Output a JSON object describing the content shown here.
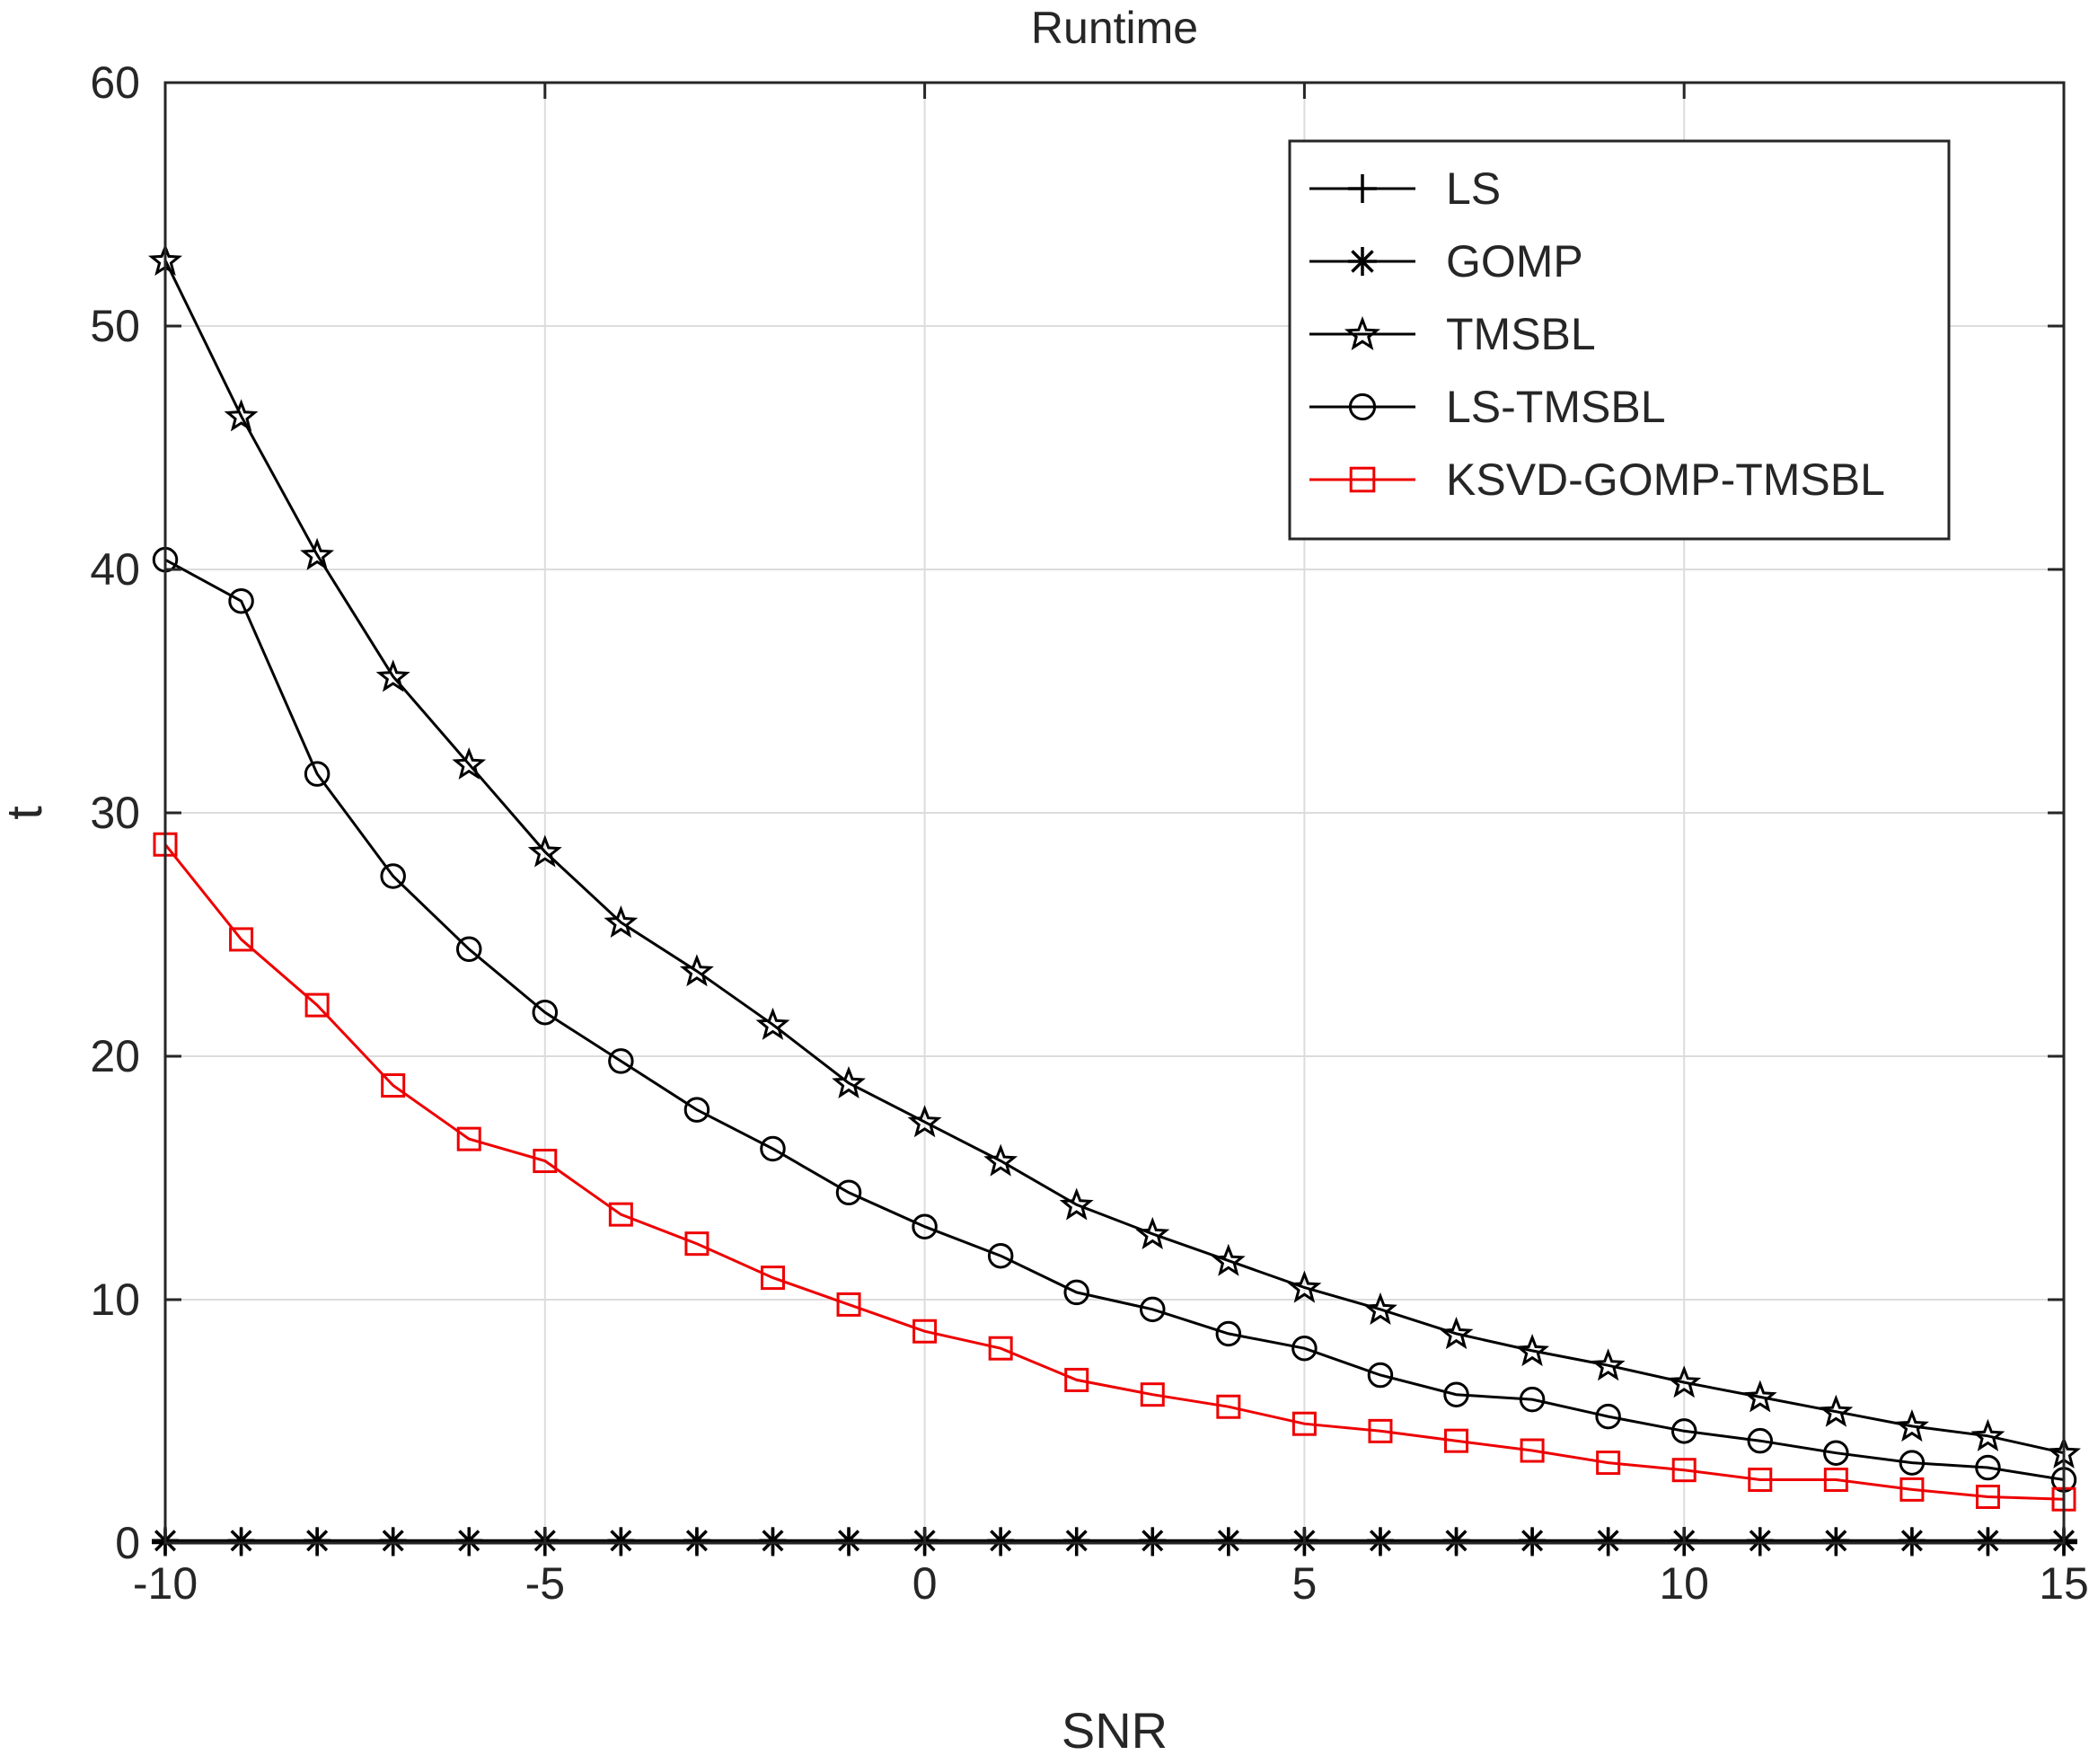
{
  "chart_data": {
    "type": "line",
    "title": "Runtime",
    "xlabel": "SNR",
    "ylabel": "t",
    "xlim": [
      -10,
      15
    ],
    "ylim": [
      0,
      60
    ],
    "xticks": [
      -10,
      -5,
      0,
      5,
      10,
      15
    ],
    "yticks": [
      0,
      10,
      20,
      30,
      40,
      50,
      60
    ],
    "grid": true,
    "legend_position": "top-right",
    "x": [
      -10,
      -9,
      -8,
      -7,
      -6,
      -5,
      -4,
      -3,
      -2,
      -1,
      0,
      1,
      2,
      3,
      4,
      5,
      6,
      7,
      8,
      9,
      10,
      11,
      12,
      13,
      14,
      15
    ],
    "series": [
      {
        "name": "LS",
        "color": "#000000",
        "marker": "plus",
        "values": [
          0.02,
          0.02,
          0.02,
          0.02,
          0.02,
          0.02,
          0.02,
          0.02,
          0.02,
          0.02,
          0.02,
          0.02,
          0.02,
          0.02,
          0.02,
          0.02,
          0.02,
          0.02,
          0.02,
          0.02,
          0.02,
          0.02,
          0.02,
          0.02,
          0.02,
          0.02
        ]
      },
      {
        "name": "GOMP",
        "color": "#000000",
        "marker": "asterisk",
        "values": [
          0.1,
          0.1,
          0.1,
          0.1,
          0.1,
          0.1,
          0.1,
          0.1,
          0.1,
          0.1,
          0.1,
          0.1,
          0.1,
          0.1,
          0.1,
          0.1,
          0.1,
          0.1,
          0.1,
          0.1,
          0.1,
          0.1,
          0.1,
          0.1,
          0.1,
          0.1
        ]
      },
      {
        "name": "TMSBL",
        "color": "#000000",
        "marker": "pentagram",
        "values": [
          52.7,
          46.3,
          40.6,
          35.6,
          32.0,
          28.4,
          25.5,
          23.5,
          21.3,
          18.9,
          17.3,
          15.7,
          13.9,
          12.7,
          11.6,
          10.5,
          9.6,
          8.6,
          7.9,
          7.3,
          6.6,
          6.0,
          5.4,
          4.8,
          4.4,
          3.7
        ]
      },
      {
        "name": "LS-TMSBL",
        "color": "#000000",
        "marker": "circle",
        "values": [
          40.4,
          38.7,
          31.6,
          27.4,
          24.4,
          21.8,
          19.8,
          17.8,
          16.2,
          14.4,
          13.0,
          11.8,
          10.3,
          9.6,
          8.6,
          8.0,
          6.9,
          6.1,
          5.9,
          5.2,
          4.6,
          4.2,
          3.7,
          3.3,
          3.1,
          2.6
        ]
      },
      {
        "name": "KSVD-GOMP-TMSBL",
        "color": "#ee0000",
        "marker": "square",
        "values": [
          28.7,
          24.8,
          22.1,
          18.8,
          16.6,
          15.7,
          13.5,
          12.3,
          10.9,
          9.8,
          8.7,
          8.0,
          6.7,
          6.1,
          5.6,
          4.9,
          4.6,
          4.2,
          3.8,
          3.3,
          3.0,
          2.6,
          2.6,
          2.2,
          1.9,
          1.8
        ]
      }
    ]
  }
}
